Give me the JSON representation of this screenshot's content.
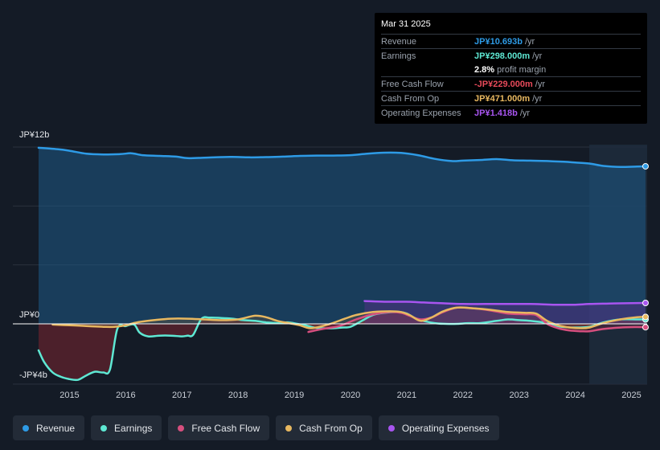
{
  "tooltip": {
    "date": "Mar 31 2025",
    "rows": [
      {
        "label": "Revenue",
        "value": "JP¥10.693b",
        "unit": "/yr",
        "color": "#2e9be6"
      },
      {
        "label": "Earnings",
        "value": "JP¥298.000m",
        "unit": "/yr",
        "color": "#5ee8d3"
      },
      {
        "label": "",
        "value": "2.8%",
        "unit": "profit margin",
        "color": "#ffffff"
      },
      {
        "label": "Free Cash Flow",
        "value": "-JP¥229.000m",
        "unit": "/yr",
        "color": "#e84a5a"
      },
      {
        "label": "Cash From Op",
        "value": "JP¥471.000m",
        "unit": "/yr",
        "color": "#e8b860"
      },
      {
        "label": "Operating Expenses",
        "value": "JP¥1.418b",
        "unit": "/yr",
        "color": "#a855f0"
      }
    ]
  },
  "legend": [
    {
      "label": "Revenue",
      "color": "#2e9be6"
    },
    {
      "label": "Earnings",
      "color": "#5ee8d3"
    },
    {
      "label": "Free Cash Flow",
      "color": "#d64f7e"
    },
    {
      "label": "Cash From Op",
      "color": "#e8b860"
    },
    {
      "label": "Operating Expenses",
      "color": "#a855f0"
    }
  ],
  "chart_data": {
    "type": "line",
    "y_axis_labels": [
      "JP¥12b",
      "JP¥0",
      "-JP¥4b"
    ],
    "ylim": [
      -4,
      12
    ],
    "xlim": [
      2014.45,
      2025.25
    ],
    "x_ticks": [
      2015,
      2016,
      2017,
      2018,
      2019,
      2020,
      2021,
      2022,
      2023,
      2024,
      2025
    ],
    "x_tick_labels": [
      "2015",
      "2016",
      "2017",
      "2018",
      "2019",
      "2020",
      "2021",
      "2022",
      "2023",
      "2024",
      "2025"
    ],
    "forecast_start": 2024.25,
    "series": [
      {
        "name": "Revenue",
        "color": "#2e9be6",
        "x": [
          2014.45,
          2014.8,
          2015.0,
          2015.3,
          2015.6,
          2015.9,
          2016.1,
          2016.3,
          2016.6,
          2016.9,
          2017.1,
          2017.4,
          2017.7,
          2017.9,
          2018.2,
          2018.5,
          2018.8,
          2019.1,
          2019.4,
          2019.7,
          2020.0,
          2020.3,
          2020.6,
          2020.9,
          2021.2,
          2021.5,
          2021.8,
          2022.0,
          2022.3,
          2022.6,
          2022.9,
          2023.2,
          2023.5,
          2023.8,
          2024.0,
          2024.25,
          2024.5,
          2024.8,
          2025.1,
          2025.25
        ],
        "values": [
          11.95,
          11.85,
          11.75,
          11.55,
          11.5,
          11.52,
          11.58,
          11.45,
          11.4,
          11.35,
          11.25,
          11.28,
          11.32,
          11.33,
          11.3,
          11.32,
          11.35,
          11.4,
          11.42,
          11.42,
          11.45,
          11.55,
          11.62,
          11.6,
          11.45,
          11.2,
          11.05,
          11.08,
          11.12,
          11.18,
          11.1,
          11.08,
          11.05,
          11.0,
          10.95,
          10.88,
          10.72,
          10.65,
          10.68,
          10.693
        ]
      },
      {
        "name": "Earnings",
        "color": "#5ee8d3",
        "x": [
          2014.45,
          2014.55,
          2014.7,
          2014.85,
          2015.0,
          2015.15,
          2015.3,
          2015.45,
          2015.6,
          2015.72,
          2015.85,
          2016.0,
          2016.15,
          2016.25,
          2016.4,
          2016.6,
          2016.8,
          2017.0,
          2017.1,
          2017.2,
          2017.35,
          2017.5,
          2017.7,
          2017.9,
          2018.1,
          2018.3,
          2018.5,
          2018.7,
          2018.9,
          2019.05,
          2019.2,
          2019.35,
          2019.5,
          2019.7,
          2019.85,
          2020.0,
          2020.2,
          2020.4,
          2020.6,
          2020.85,
          2021.0,
          2021.2,
          2021.5,
          2021.7,
          2021.9,
          2022.1,
          2022.3,
          2022.6,
          2022.8,
          2023.0,
          2023.2,
          2023.5,
          2023.75,
          2024.0,
          2024.25,
          2024.5,
          2024.8,
          2025.1,
          2025.25
        ],
        "values": [
          -1.8,
          -2.6,
          -3.3,
          -3.6,
          -3.75,
          -3.8,
          -3.5,
          -3.25,
          -3.3,
          -3.1,
          -0.35,
          -0.15,
          -0.05,
          -0.6,
          -0.85,
          -0.8,
          -0.8,
          -0.85,
          -0.8,
          -0.75,
          0.35,
          0.42,
          0.4,
          0.35,
          0.25,
          0.2,
          0.1,
          0.05,
          0.1,
          0.0,
          -0.1,
          -0.25,
          -0.3,
          -0.3,
          -0.25,
          -0.2,
          0.2,
          0.6,
          0.75,
          0.8,
          0.7,
          0.3,
          0.05,
          0.0,
          0.0,
          0.05,
          0.05,
          0.2,
          0.3,
          0.25,
          0.2,
          0.05,
          -0.2,
          -0.25,
          -0.2,
          0.1,
          0.3,
          0.3,
          0.298
        ]
      },
      {
        "name": "Free Cash Flow",
        "color": "#d64f7e",
        "x": [
          2019.25,
          2019.5,
          2019.8,
          2020.1,
          2020.4,
          2020.7,
          2020.9,
          2021.05,
          2021.25,
          2021.45,
          2021.65,
          2021.9,
          2022.2,
          2022.5,
          2022.8,
          2023.1,
          2023.3,
          2023.5,
          2023.7,
          2023.9,
          2024.1,
          2024.25,
          2024.5,
          2024.8,
          2025.1,
          2025.25
        ],
        "values": [
          -0.55,
          -0.35,
          -0.15,
          0.3,
          0.65,
          0.8,
          0.75,
          0.55,
          0.3,
          0.45,
          0.8,
          1.1,
          1.05,
          0.9,
          0.7,
          0.65,
          0.6,
          0.0,
          -0.3,
          -0.45,
          -0.5,
          -0.5,
          -0.35,
          -0.25,
          -0.22,
          -0.229
        ]
      },
      {
        "name": "Cash From Op",
        "color": "#e8b860",
        "x": [
          2014.7,
          2015.0,
          2015.3,
          2015.6,
          2015.8,
          2016.0,
          2016.2,
          2016.5,
          2016.8,
          2017.1,
          2017.4,
          2017.7,
          2018.0,
          2018.3,
          2018.5,
          2018.7,
          2018.9,
          2019.1,
          2019.3,
          2019.6,
          2019.9,
          2020.1,
          2020.4,
          2020.7,
          2020.9,
          2021.05,
          2021.25,
          2021.45,
          2021.65,
          2021.9,
          2022.2,
          2022.5,
          2022.8,
          2023.1,
          2023.3,
          2023.5,
          2023.7,
          2023.9,
          2024.1,
          2024.25,
          2024.5,
          2024.8,
          2025.1,
          2025.25
        ],
        "values": [
          -0.05,
          -0.1,
          -0.15,
          -0.2,
          -0.2,
          -0.1,
          0.1,
          0.25,
          0.35,
          0.35,
          0.3,
          0.25,
          0.3,
          0.55,
          0.45,
          0.2,
          0.05,
          -0.1,
          -0.3,
          -0.05,
          0.35,
          0.6,
          0.8,
          0.85,
          0.8,
          0.6,
          0.2,
          0.45,
          0.85,
          1.1,
          1.05,
          0.95,
          0.8,
          0.75,
          0.7,
          0.2,
          -0.1,
          -0.25,
          -0.3,
          -0.25,
          0.05,
          0.3,
          0.45,
          0.471
        ]
      },
      {
        "name": "Operating Expenses",
        "color": "#a855f0",
        "x": [
          2020.25,
          2020.6,
          2021.0,
          2021.3,
          2021.6,
          2022.0,
          2022.4,
          2022.8,
          2023.2,
          2023.6,
          2024.0,
          2024.25,
          2024.6,
          2025.0,
          2025.25
        ],
        "values": [
          1.55,
          1.5,
          1.5,
          1.45,
          1.4,
          1.35,
          1.35,
          1.35,
          1.35,
          1.3,
          1.3,
          1.35,
          1.38,
          1.4,
          1.418
        ]
      }
    ]
  }
}
